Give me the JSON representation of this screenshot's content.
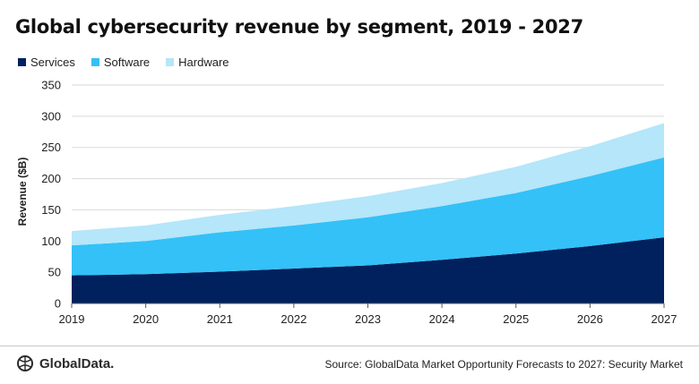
{
  "header": {
    "title": "Global cybersecurity revenue by segment, 2019 - 2027"
  },
  "footer": {
    "logo_text": "GlobalData.",
    "source": "Source: GlobalData Market Opportunity Forecasts to 2027: Security Market"
  },
  "colors": {
    "services": "#00215e",
    "software": "#33c1f7",
    "hardware": "#b5e6fa",
    "grid": "#d9d9d9",
    "axis": "#595959"
  },
  "chart_data": {
    "type": "area",
    "stacked": true,
    "title": "Global cybersecurity revenue by segment, 2019 - 2027",
    "xlabel": "",
    "ylabel": "Revenue ($B)",
    "x": [
      "2019",
      "2020",
      "2021",
      "2022",
      "2023",
      "2024",
      "2025",
      "2026",
      "2027"
    ],
    "ylim": [
      0,
      350
    ],
    "yticks": [
      "0",
      "50",
      "100",
      "150",
      "200",
      "250",
      "300",
      "350"
    ],
    "grid": true,
    "legend": "top-left",
    "series": [
      {
        "name": "Services",
        "values": [
          45,
          47,
          51,
          56,
          61,
          70,
          80,
          92,
          106
        ]
      },
      {
        "name": "Software",
        "values": [
          48,
          53,
          63,
          69,
          77,
          86,
          97,
          112,
          128
        ]
      },
      {
        "name": "Hardware",
        "values": [
          23,
          25,
          28,
          31,
          34,
          37,
          42,
          48,
          55
        ]
      }
    ]
  }
}
